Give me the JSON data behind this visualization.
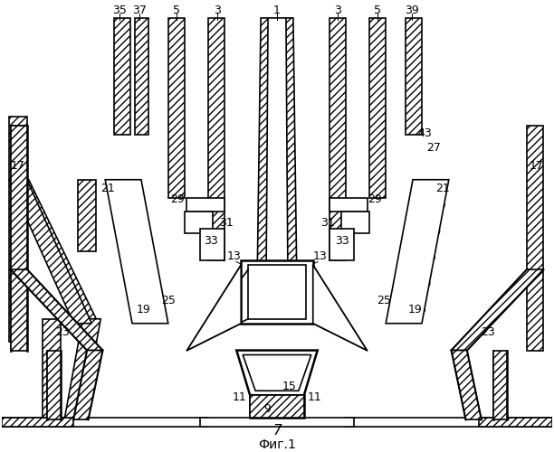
{
  "title": "",
  "fig_label": "7",
  "caption": "Фиг.1",
  "bg_color": "#ffffff",
  "line_color": "#000000",
  "hatch_color": "#000000",
  "figsize": [
    6.12,
    5.0
  ],
  "dpi": 100
}
